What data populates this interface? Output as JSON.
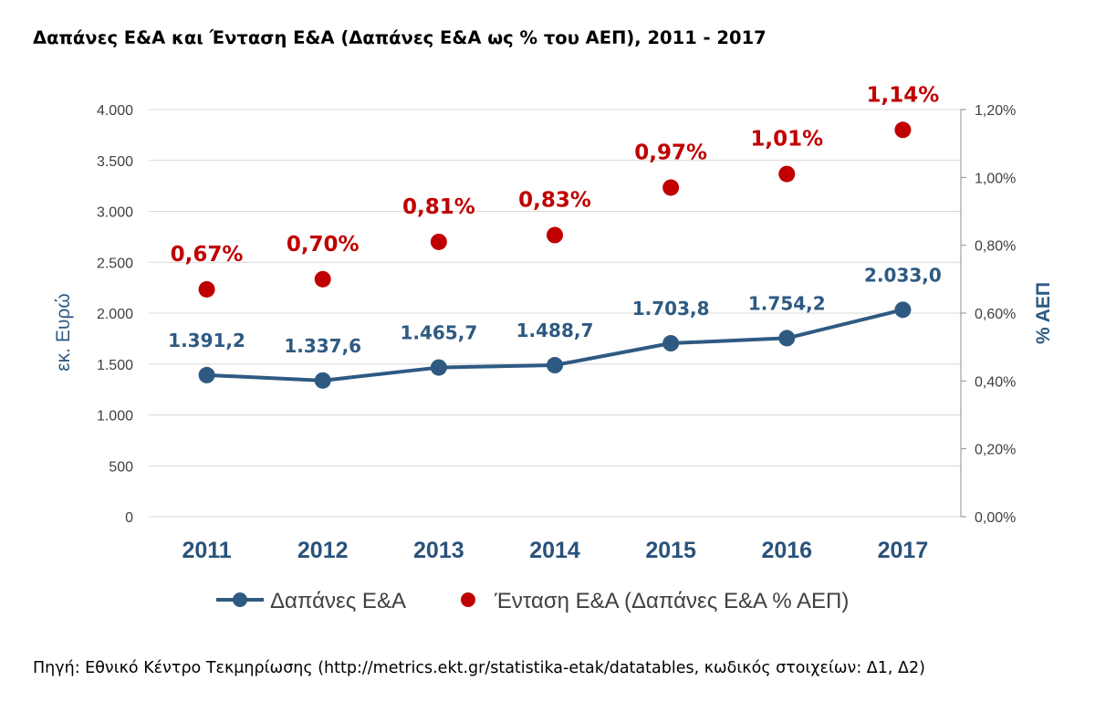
{
  "title": "Δαπάνες Ε&Α και Ένταση Ε&Α (Δαπάνες Ε&Α ως % του ΑΕΠ), 2011 - 2017",
  "source": "Πηγή: Εθνικό Κέντρο Τεκμηρίωσης (http://metrics.ekt.gr/statistika-etak/datatables, κωδικός στοιχείων: Δ1, Δ2)",
  "chart_data": {
    "type": "line",
    "categories": [
      "2011",
      "2012",
      "2013",
      "2014",
      "2015",
      "2016",
      "2017"
    ],
    "series": [
      {
        "name": "Δαπάνες Ε&Α",
        "axis": "left",
        "style": "line-with-markers",
        "color": "#2e5a82",
        "values": [
          1391.2,
          1337.6,
          1465.7,
          1488.7,
          1703.8,
          1754.2,
          2033.0
        ],
        "labels": [
          "1.391,2",
          "1.337,6",
          "1.465,7",
          "1.488,7",
          "1.703,8",
          "1.754,2",
          "2.033,0"
        ]
      },
      {
        "name": "Ένταση Ε&Α (Δαπάνες Ε&Α % ΑΕΠ)",
        "axis": "right",
        "style": "markers-only",
        "color": "#c00000",
        "values": [
          0.67,
          0.7,
          0.81,
          0.83,
          0.97,
          1.01,
          1.14
        ],
        "labels": [
          "0,67%",
          "0,70%",
          "0,81%",
          "0,83%",
          "0,97%",
          "1,01%",
          "1,14%"
        ]
      }
    ],
    "ylabel": "εκ. Ευρώ",
    "ylim": [
      0,
      4000
    ],
    "yticks": [
      0,
      500,
      1000,
      1500,
      2000,
      2500,
      3000,
      3500,
      4000
    ],
    "ytick_labels": [
      "0",
      "500",
      "1.000",
      "1.500",
      "2.000",
      "2.500",
      "3.000",
      "3.500",
      "4.000"
    ],
    "y2label": "% ΑΕΠ",
    "y2lim": [
      0,
      1.2
    ],
    "y2ticks": [
      0,
      0.2,
      0.4,
      0.6,
      0.8,
      1.0,
      1.2
    ],
    "y2tick_labels": [
      "0,00%",
      "0,20%",
      "0,40%",
      "0,60%",
      "0,80%",
      "1,00%",
      "1,20%"
    ],
    "grid": true,
    "legend_position": "bottom"
  }
}
